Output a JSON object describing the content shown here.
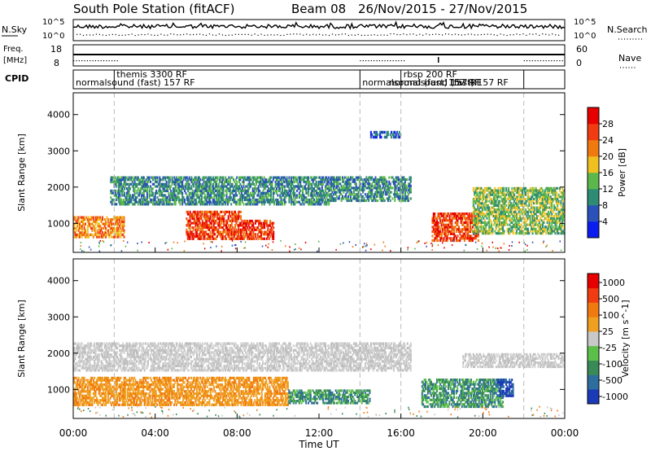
{
  "title": {
    "station": "South Pole Station (fitACF)",
    "beam": "Beam 08",
    "dates": "26/Nov/2015 - 27/Nov/2015"
  },
  "noise_panel": {
    "left_label": "N.Sky",
    "right_label": "N.Search",
    "left_ticks": [
      "10^5",
      "10^0"
    ],
    "right_ticks": [
      "10^5",
      "10^0"
    ]
  },
  "freq_panel": {
    "left_label_line1": "Freq.",
    "left_label_line2": "[MHz]",
    "right_label": "Nave",
    "left_ticks": [
      "18",
      "8"
    ],
    "right_ticks": [
      "60",
      "0"
    ]
  },
  "cpid_panel": {
    "label": "CPID",
    "programs": [
      {
        "text": "normalsound (fast) 157 RF",
        "row": "lower",
        "start_h": 0.0
      },
      {
        "text": "themis 3300 RF",
        "row": "upper",
        "start_h": 2.0
      },
      {
        "text": "normalsound (fast) 157 RF",
        "row": "lower",
        "start_h": 14.0
      },
      {
        "text": "rbsp 200 RF",
        "row": "upper",
        "start_h": 16.0
      },
      {
        "text": "normalsound (fast) 157 RF",
        "row": "lower",
        "start_h": 15.3
      },
      {
        "text": "157 RF",
        "row": "lower",
        "start_h": 18.2
      }
    ],
    "boundaries_h": [
      2.0,
      14.0,
      16.0,
      22.0
    ]
  },
  "chart_data": [
    {
      "type": "heatmap",
      "name": "power",
      "ylabel": "Slant Range [km]",
      "ylim": [
        200,
        4600
      ],
      "yticks": [
        1000,
        2000,
        3000,
        4000
      ],
      "xlim": [
        "00:00",
        "24:00"
      ],
      "colorbar": {
        "label": "Power [dB]",
        "ticks": [
          "4",
          "8",
          "12",
          "16",
          "20",
          "24",
          "28"
        ],
        "colors": [
          "#0a1cf0",
          "#2a52b8",
          "#2f8c74",
          "#5cb84c",
          "#f0c020",
          "#f07a10",
          "#f03c10",
          "#e60000"
        ]
      },
      "regions": [
        {
          "t0": 1.8,
          "t1": 12.5,
          "r0": 1500,
          "r1": 2300,
          "level": "12-16"
        },
        {
          "t0": 12.5,
          "t1": 16.5,
          "r0": 1600,
          "r1": 2300,
          "level": "8-12"
        },
        {
          "t0": 0.0,
          "t1": 2.5,
          "r0": 600,
          "r1": 1200,
          "level": "16-24"
        },
        {
          "t0": 5.5,
          "t1": 8.2,
          "r0": 550,
          "r1": 1350,
          "level": "28+"
        },
        {
          "t0": 8.2,
          "t1": 9.8,
          "r0": 550,
          "r1": 1100,
          "level": "20-28"
        },
        {
          "t0": 14.5,
          "t1": 16.0,
          "r0": 3350,
          "r1": 3550,
          "level": "4-8"
        },
        {
          "t0": 17.5,
          "t1": 19.8,
          "r0": 500,
          "r1": 1300,
          "level": "28+"
        },
        {
          "t0": 19.5,
          "t1": 24.0,
          "r0": 700,
          "r1": 2000,
          "level": "12-20"
        }
      ]
    },
    {
      "type": "heatmap",
      "name": "velocity",
      "ylabel": "Slant Range [km]",
      "ylim": [
        200,
        4600
      ],
      "yticks": [
        1000,
        2000,
        3000,
        4000
      ],
      "xlabel": "Time UT",
      "xticks": [
        "00:00",
        "04:00",
        "08:00",
        "12:00",
        "16:00",
        "20:00",
        "00:00"
      ],
      "colorbar": {
        "label": "Velocity [m s^-1]",
        "ticks": [
          "1000",
          "500",
          "100",
          "25",
          "-25",
          "-100",
          "-500",
          "-1000"
        ],
        "colors": [
          "#1a3ab8",
          "#2e6e9e",
          "#3a8a58",
          "#5bbf4a",
          "#c8c8c8",
          "#f0a020",
          "#f07a10",
          "#f03c10",
          "#e60000"
        ]
      },
      "regions": [
        {
          "t0": 0.0,
          "t1": 16.5,
          "r0": 1500,
          "r1": 2300,
          "level": "-25..25"
        },
        {
          "t0": 0.0,
          "t1": 10.5,
          "r0": 550,
          "r1": 1350,
          "level": "-100..-500"
        },
        {
          "t0": 10.5,
          "t1": 14.5,
          "r0": 600,
          "r1": 1000,
          "level": "100..500"
        },
        {
          "t0": 17.0,
          "t1": 21.0,
          "r0": 500,
          "r1": 1300,
          "level": "100..500"
        },
        {
          "t0": 20.7,
          "t1": 21.5,
          "r0": 800,
          "r1": 1300,
          "level": "500..1000"
        },
        {
          "t0": 19.0,
          "t1": 24.0,
          "r0": 1600,
          "r1": 2000,
          "level": "-25..25"
        }
      ]
    }
  ]
}
